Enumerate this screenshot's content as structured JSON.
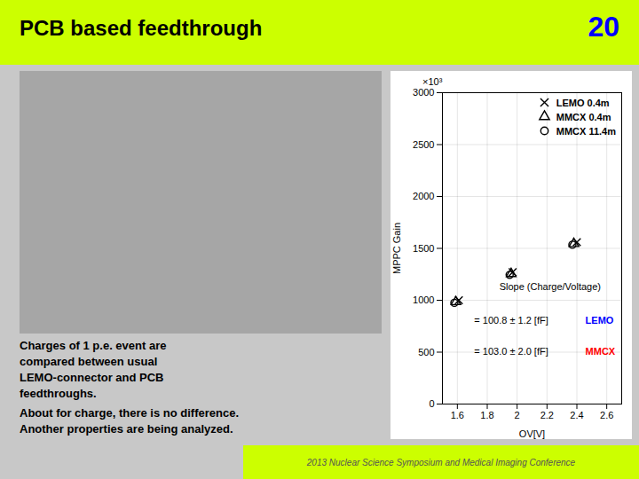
{
  "chart_data": {
    "type": "scatter",
    "title": "PCB based feedthrough",
    "x_label": "OV[V]",
    "y_label": "MPPC Gain",
    "xlim": [
      1.5,
      2.7
    ],
    "xticks": [
      1.6,
      1.8,
      2,
      2.2,
      2.4,
      2.6
    ],
    "ylim": [
      0,
      3000
    ],
    "yticks": [
      0,
      500,
      1000,
      1500,
      2000,
      2500,
      3000
    ],
    "grid": true,
    "legend": "upper right",
    "series": [
      {
        "name": "LEMO 0.4m",
        "color": "#000000",
        "marker": "x",
        "x": [
          1.61,
          1.97,
          2.4
        ],
        "values": [
          1000,
          1270,
          1560
        ]
      },
      {
        "name": "MMCX 0.4m",
        "color": "#000000",
        "marker": "triangle",
        "x": [
          1.59,
          1.96,
          2.38
        ],
        "values": [
          985,
          1255,
          1545
        ]
      },
      {
        "name": "MMCX 11.4m",
        "color": "#000000",
        "marker": "circle",
        "x": [
          1.58,
          1.95,
          2.37
        ],
        "values": [
          975,
          1245,
          1535
        ]
      }
    ],
    "annotations": [
      {
        "text": "20",
        "color": "#0000ff"
      },
      {
        "text": "2013 Nuclear Science Symposium and Medical Imaging Conference",
        "color": "#555555"
      },
      {
        "text": "Charges of 1 p.e. event are\ncompared between usual\nLEMO-connector and PCB\nfeedthroughs."
      },
      {
        "text": "About for charge, there is no difference.\nAnother properties are being analyzed."
      },
      {
        "text": "×10³"
      },
      {
        "text": "Slope (Charge/Voltage)"
      },
      {
        "text": "= 100.8 ± 1.2 [fF]"
      },
      {
        "text": "LEMO",
        "color": "#0000ff"
      },
      {
        "text": "= 103.0 ± 2.0 [fF]"
      },
      {
        "text": "MMCX",
        "color": "#ff0000"
      }
    ]
  }
}
